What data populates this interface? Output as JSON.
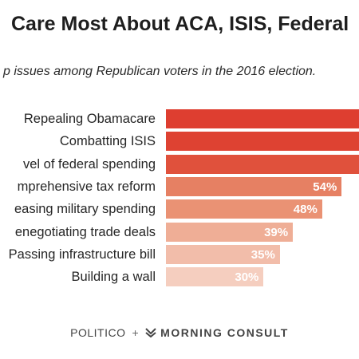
{
  "title": "Care Most About ACA, ISIS, Federal",
  "subtitle": "p issues among Republican voters in the 2016 election.",
  "footer": {
    "left": "POLITICO",
    "separator": "+",
    "right": "MORNING CONSULT"
  },
  "colors": {
    "bars": [
      "#de3e30",
      "#de4232",
      "#e0513c",
      "#e68063",
      "#ea9274",
      "#efae96",
      "#f2bdaa",
      "#f5cebf"
    ]
  },
  "chart_data": {
    "type": "bar",
    "orientation": "horizontal",
    "categories": [
      "Repealing Obamacare",
      "Combatting ISIS",
      "vel of federal spending",
      "mprehensive tax reform",
      "easing military spending",
      "enegotiating trade deals",
      "Passing infrastructure bill",
      "Building a wall"
    ],
    "values": [
      null,
      null,
      null,
      54,
      48,
      39,
      35,
      30
    ],
    "value_labels": [
      "",
      "",
      "",
      "54%",
      "48%",
      "39%",
      "35%",
      "30%"
    ],
    "xlim": [
      0,
      100
    ],
    "grid": false,
    "legend": "none"
  }
}
